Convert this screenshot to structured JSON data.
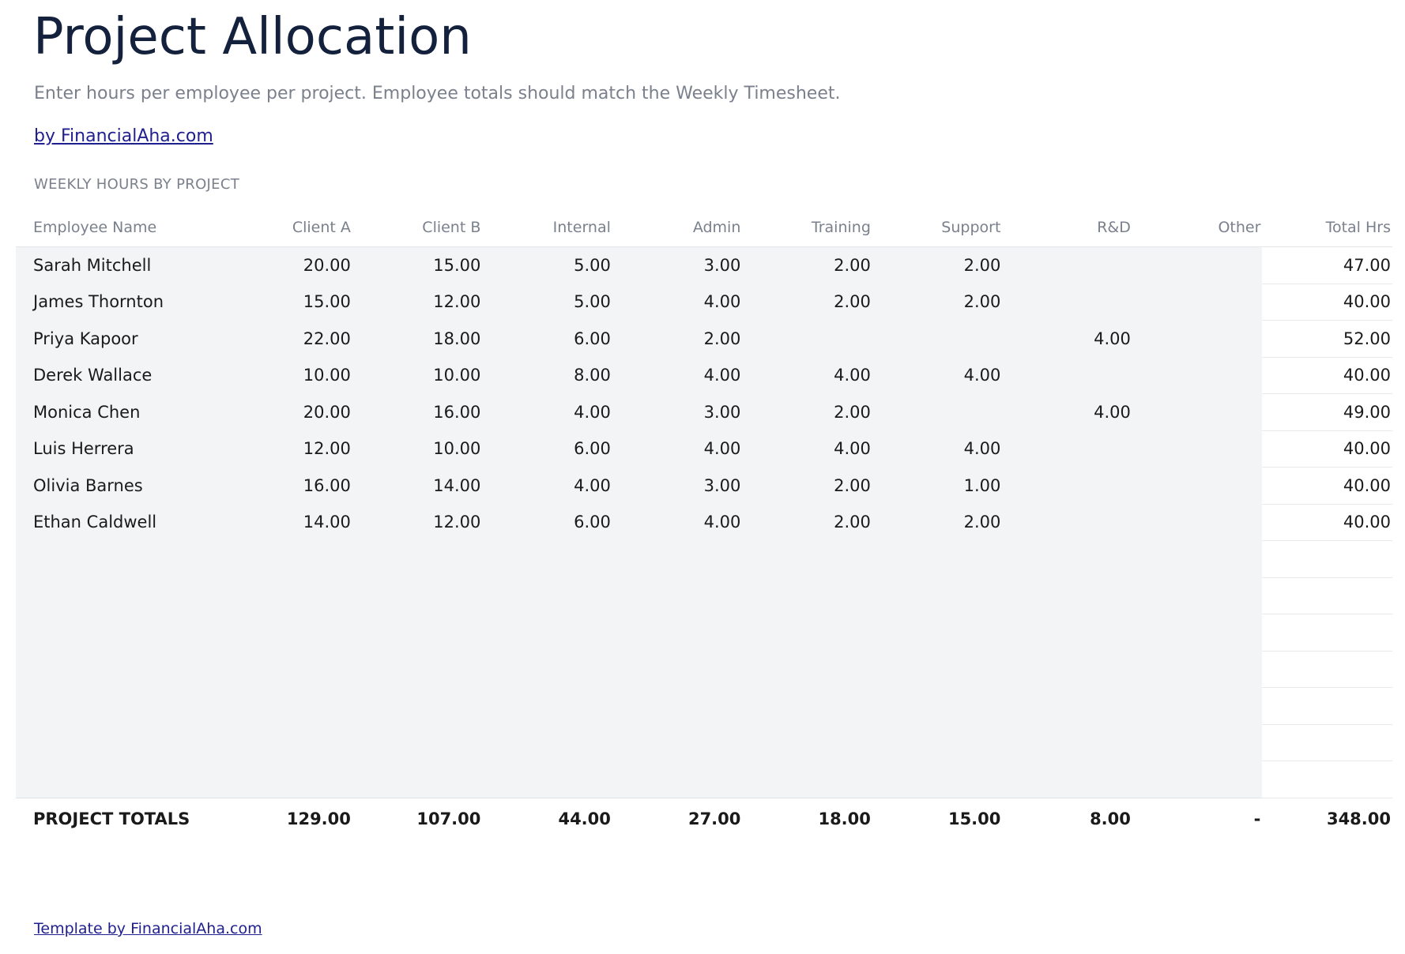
{
  "title": "Project Allocation",
  "subtitle": "Enter hours per employee per project. Employee totals should match the Weekly Timesheet.",
  "brand_link": "by FinancialAha.com",
  "section_label": "WEEKLY HOURS BY PROJECT",
  "table": {
    "headers": [
      "Employee Name",
      "Client A",
      "Client B",
      "Internal",
      "Admin",
      "Training",
      "Support",
      "R&D",
      "Other",
      "Total Hrs"
    ],
    "rows": [
      [
        "Sarah Mitchell",
        "20.00",
        "15.00",
        "5.00",
        "3.00",
        "2.00",
        "2.00",
        "",
        "",
        "47.00"
      ],
      [
        "James Thornton",
        "15.00",
        "12.00",
        "5.00",
        "4.00",
        "2.00",
        "2.00",
        "",
        "",
        "40.00"
      ],
      [
        "Priya Kapoor",
        "22.00",
        "18.00",
        "6.00",
        "2.00",
        "",
        "",
        "4.00",
        "",
        "52.00"
      ],
      [
        "Derek Wallace",
        "10.00",
        "10.00",
        "8.00",
        "4.00",
        "4.00",
        "4.00",
        "",
        "",
        "40.00"
      ],
      [
        "Monica Chen",
        "20.00",
        "16.00",
        "4.00",
        "3.00",
        "2.00",
        "",
        "4.00",
        "",
        "49.00"
      ],
      [
        "Luis Herrera",
        "12.00",
        "10.00",
        "6.00",
        "4.00",
        "4.00",
        "4.00",
        "",
        "",
        "40.00"
      ],
      [
        "Olivia Barnes",
        "16.00",
        "14.00",
        "4.00",
        "3.00",
        "2.00",
        "1.00",
        "",
        "",
        "40.00"
      ],
      [
        "Ethan Caldwell",
        "14.00",
        "12.00",
        "6.00",
        "4.00",
        "2.00",
        "2.00",
        "",
        "",
        "40.00"
      ],
      [
        "",
        "",
        "",
        "",
        "",
        "",
        "",
        "",
        "",
        ""
      ],
      [
        "",
        "",
        "",
        "",
        "",
        "",
        "",
        "",
        "",
        ""
      ],
      [
        "",
        "",
        "",
        "",
        "",
        "",
        "",
        "",
        "",
        ""
      ],
      [
        "",
        "",
        "",
        "",
        "",
        "",
        "",
        "",
        "",
        ""
      ],
      [
        "",
        "",
        "",
        "",
        "",
        "",
        "",
        "",
        "",
        ""
      ],
      [
        "",
        "",
        "",
        "",
        "",
        "",
        "",
        "",
        "",
        ""
      ],
      [
        "",
        "",
        "",
        "",
        "",
        "",
        "",
        "",
        "",
        ""
      ]
    ],
    "totals": [
      "PROJECT TOTALS",
      "129.00",
      "107.00",
      "44.00",
      "27.00",
      "18.00",
      "15.00",
      "8.00",
      "-",
      "348.00"
    ]
  },
  "footer_link": "Template by FinancialAha.com"
}
